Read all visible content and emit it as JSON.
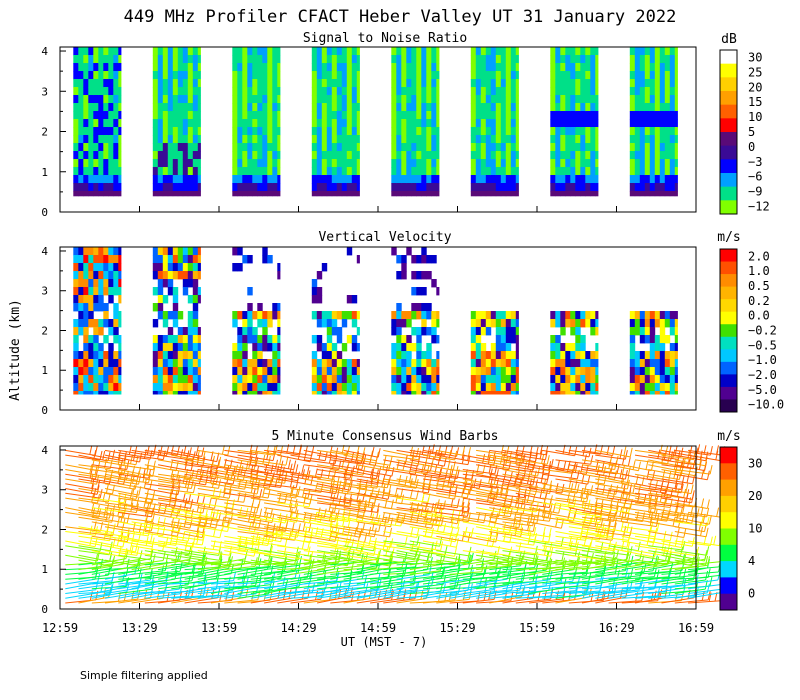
{
  "figure": {
    "title": "449 MHz Profiler CFACT Heber Valley UT 31 January 2022",
    "ylabel": "Altitude (km)",
    "xlabel": "UT  (MST - 7)",
    "footnote": "Simple filtering applied",
    "x_ticks": [
      "12:59",
      "13:29",
      "13:59",
      "14:29",
      "14:59",
      "15:29",
      "15:59",
      "16:29",
      "16:59"
    ],
    "y_ticks": [
      "0",
      "1",
      "2",
      "3",
      "4"
    ]
  },
  "chart_data": [
    {
      "type": "heatmap",
      "title": "Signal to Noise Ratio",
      "units": "dB",
      "xlim": [
        "12:59",
        "16:59"
      ],
      "ylim": [
        0,
        4.1
      ],
      "ylabel": "Altitude (km)",
      "colorbar_labels": [
        "30",
        "25",
        "20",
        "15",
        "10",
        "5",
        "0",
        "−3",
        "−6",
        "−9",
        "−12"
      ],
      "colorbar_colors": [
        "#ffffff",
        "#ffff00",
        "#ffd000",
        "#ffa000",
        "#ff6000",
        "#ff0000",
        "#5a0a78",
        "#3a0a96",
        "#0000ff",
        "#00a0ff",
        "#00e088",
        "#80ff00"
      ],
      "data_blocks_utc": [
        [
          "13:04",
          "13:22"
        ],
        [
          "13:34",
          "13:52"
        ],
        [
          "14:04",
          "14:22"
        ],
        [
          "14:34",
          "14:52"
        ],
        [
          "15:04",
          "15:22"
        ],
        [
          "15:34",
          "15:52"
        ],
        [
          "16:04",
          "16:22"
        ],
        [
          "16:34",
          "16:52"
        ]
      ],
      "altitude_range_km": [
        0.4,
        4.1
      ]
    },
    {
      "type": "heatmap",
      "title": "Vertical Velocity",
      "units": "m/s",
      "xlim": [
        "12:59",
        "16:59"
      ],
      "ylim": [
        0,
        4.1
      ],
      "colorbar_labels": [
        "2.0",
        "1.0",
        "0.5",
        "0.2",
        "0.0",
        "−0.2",
        "−0.5",
        "−1.0",
        "−2.0",
        "−5.0",
        "−10.0"
      ],
      "colorbar_colors": [
        "#ff0000",
        "#ff5000",
        "#ff8c00",
        "#ffb400",
        "#ffd800",
        "#ffff00",
        "#40e000",
        "#00e0c0",
        "#00c8ff",
        "#0064ff",
        "#0000c8",
        "#500090",
        "#280050"
      ],
      "data_blocks_utc": [
        [
          "13:04",
          "13:22"
        ],
        [
          "13:34",
          "13:52"
        ],
        [
          "14:04",
          "14:22"
        ],
        [
          "14:34",
          "14:52"
        ],
        [
          "15:04",
          "15:22"
        ],
        [
          "15:34",
          "15:52"
        ],
        [
          "16:04",
          "16:22"
        ],
        [
          "16:34",
          "16:52"
        ]
      ],
      "altitude_range_km": [
        0.4,
        4.1
      ]
    },
    {
      "type": "scatter",
      "title": "5 Minute Consensus Wind Barbs",
      "units": "m/s",
      "xlim": [
        "12:59",
        "16:59"
      ],
      "ylim": [
        0,
        4.1
      ],
      "colorbar_labels": [
        "30",
        "20",
        "10",
        "4",
        "0"
      ],
      "colorbar_colors": [
        "#ff0000",
        "#ff6000",
        "#ffa000",
        "#ffd000",
        "#ffff00",
        "#80ff00",
        "#00ff40",
        "#00d8ff",
        "#0000ff",
        "#500090"
      ],
      "wind_speed_profile_ms": [
        [
          0.2,
          6
        ],
        [
          0.6,
          7
        ],
        [
          1.0,
          10
        ],
        [
          1.5,
          14
        ],
        [
          2.0,
          18
        ],
        [
          2.5,
          20
        ],
        [
          3.0,
          21
        ],
        [
          3.5,
          22
        ],
        [
          4.0,
          23
        ]
      ]
    }
  ]
}
